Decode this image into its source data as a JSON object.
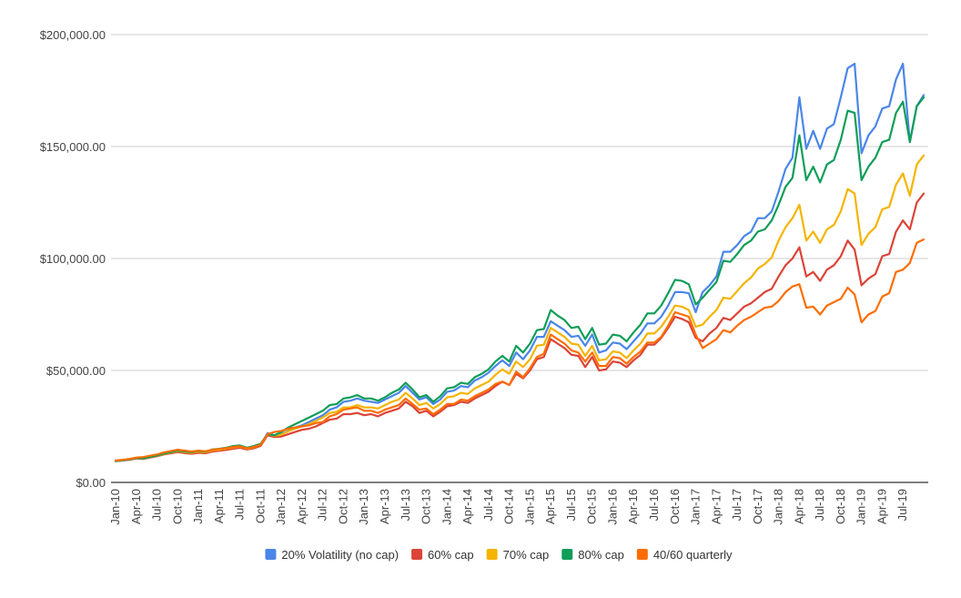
{
  "chart_data": {
    "type": "line",
    "title": "",
    "xlabel": "",
    "ylabel": "",
    "ylim": [
      0,
      200000
    ],
    "grid": true,
    "legend_position": "bottom",
    "y_ticks": [
      {
        "value": 0,
        "label": "$0.00"
      },
      {
        "value": 50000,
        "label": "$50,000.00"
      },
      {
        "value": 100000,
        "label": "$100,000.00"
      },
      {
        "value": 150000,
        "label": "$150,000.00"
      },
      {
        "value": 200000,
        "label": "$200,000.00"
      }
    ],
    "x_tick_labels": [
      "Jan-10",
      "Apr-10",
      "Jul-10",
      "Oct-10",
      "Jan-11",
      "Apr-11",
      "Jul-11",
      "Oct-11",
      "Jan-12",
      "Apr-12",
      "Jul-12",
      "Oct-12",
      "Jan-13",
      "Apr-13",
      "Jul-13",
      "Oct-13",
      "Jan-14",
      "Apr-14",
      "Jul-14",
      "Oct-14",
      "Jan-15",
      "Apr-15",
      "Jul-15",
      "Oct-15",
      "Jan-16",
      "Apr-16",
      "Jul-16",
      "Oct-16",
      "Jan-17",
      "Apr-17",
      "Jul-17",
      "Oct-17",
      "Jan-18",
      "Apr-18",
      "Jul-18",
      "Oct-18",
      "Jan-19",
      "Apr-19",
      "Jul-19"
    ],
    "x_start": "Jan-10",
    "series": [
      {
        "name": "20% Volatility (no cap)",
        "color": "#4a86e8",
        "values": [
          9500,
          9800,
          10200,
          10800,
          10600,
          11200,
          11800,
          12600,
          13200,
          13800,
          13400,
          13100,
          13600,
          13300,
          14200,
          14500,
          15000,
          15500,
          15900,
          15000,
          15600,
          16800,
          22000,
          21000,
          21500,
          23000,
          24500,
          25500,
          27000,
          28500,
          30000,
          32500,
          33500,
          36000,
          36500,
          37500,
          36500,
          36000,
          35500,
          37000,
          38500,
          40000,
          43000,
          40000,
          37000,
          38000,
          35000,
          37000,
          40500,
          41000,
          43000,
          42500,
          45500,
          47000,
          49000,
          52000,
          54500,
          52000,
          58000,
          55000,
          59000,
          65000,
          65000,
          72000,
          70000,
          68000,
          65000,
          65500,
          61000,
          66000,
          58000,
          59000,
          62500,
          62000,
          59500,
          63000,
          66500,
          71000,
          71000,
          74000,
          79000,
          85000,
          85000,
          84500,
          76000,
          85000,
          88000,
          92000,
          103000,
          103000,
          106000,
          110000,
          112000,
          118000,
          118000,
          121000,
          130000,
          140000,
          145000,
          172000,
          149000,
          157000,
          149000,
          158000,
          160000,
          172000,
          185000,
          187000,
          147000,
          155000,
          159000,
          167000,
          168000,
          180000,
          187000,
          152000,
          168000,
          173000
        ]
      },
      {
        "name": "60% cap",
        "color": "#db4437",
        "values": [
          9500,
          9800,
          10100,
          10700,
          10500,
          11100,
          11700,
          12500,
          13000,
          13500,
          13100,
          12800,
          13200,
          13000,
          13800,
          14100,
          14500,
          15000,
          15500,
          14700,
          15200,
          16300,
          21000,
          20300,
          20500,
          21500,
          22500,
          23500,
          24000,
          25000,
          26500,
          28000,
          28500,
          30500,
          30500,
          31000,
          30000,
          30500,
          29500,
          31000,
          32000,
          33000,
          36000,
          34000,
          31000,
          32000,
          29500,
          31500,
          34000,
          34500,
          36000,
          35500,
          37500,
          39000,
          40500,
          43000,
          45000,
          43500,
          48500,
          46500,
          50000,
          55000,
          56000,
          64000,
          62000,
          60000,
          57000,
          56500,
          51500,
          56000,
          50000,
          50500,
          54000,
          53500,
          51500,
          54500,
          57000,
          61500,
          61500,
          64500,
          69000,
          74000,
          73000,
          71500,
          64500,
          63000,
          66500,
          69000,
          73500,
          72500,
          75500,
          78500,
          80000,
          82500,
          85000,
          86500,
          92000,
          97000,
          100000,
          105000,
          92000,
          94000,
          90000,
          95000,
          97000,
          101000,
          108000,
          104000,
          88000,
          91000,
          93000,
          101000,
          102000,
          112000,
          117000,
          113000,
          125000,
          129000
        ]
      },
      {
        "name": "70% cap",
        "color": "#f4b400",
        "values": [
          9600,
          9900,
          10300,
          10900,
          10700,
          11300,
          11900,
          12700,
          13300,
          13900,
          13500,
          13200,
          13700,
          13400,
          14300,
          14600,
          15100,
          15600,
          16000,
          15100,
          15700,
          16800,
          21500,
          20800,
          21300,
          22800,
          24000,
          25000,
          26000,
          27500,
          29000,
          31000,
          31500,
          33500,
          33500,
          34500,
          33500,
          33500,
          33000,
          34500,
          36000,
          37000,
          40000,
          37500,
          34500,
          35500,
          33000,
          35000,
          38000,
          38500,
          40000,
          39500,
          42000,
          43500,
          45000,
          48000,
          50500,
          48500,
          54000,
          51500,
          55000,
          61000,
          61500,
          69000,
          67000,
          65000,
          62000,
          61500,
          56500,
          61000,
          54500,
          55000,
          58500,
          58000,
          55500,
          59000,
          62000,
          66500,
          66500,
          69500,
          74000,
          79000,
          78500,
          77000,
          69500,
          70500,
          74000,
          77000,
          82500,
          82000,
          85500,
          89000,
          91500,
          95500,
          97500,
          100500,
          108000,
          114000,
          118000,
          124000,
          108000,
          112000,
          107000,
          113000,
          115000,
          121000,
          131000,
          129000,
          106000,
          111000,
          114000,
          122000,
          123000,
          133000,
          138000,
          128000,
          142000,
          146000
        ]
      },
      {
        "name": "80% cap",
        "color": "#0f9d58",
        "values": [
          9600,
          9900,
          10300,
          10900,
          10700,
          11400,
          12000,
          12900,
          13500,
          14200,
          13800,
          13500,
          14000,
          13700,
          14700,
          15000,
          15500,
          16200,
          16500,
          15500,
          16200,
          17200,
          21500,
          21000,
          22500,
          24500,
          26000,
          27500,
          29000,
          30500,
          32000,
          34500,
          35000,
          37500,
          38000,
          39000,
          37500,
          37500,
          36500,
          38000,
          40000,
          41500,
          44500,
          41500,
          38000,
          39000,
          36000,
          38500,
          42000,
          42500,
          44500,
          44000,
          47000,
          48500,
          50500,
          54000,
          56500,
          54000,
          61000,
          58000,
          62000,
          68000,
          68500,
          77000,
          74500,
          72500,
          69000,
          69500,
          64000,
          69000,
          61500,
          62000,
          66000,
          65500,
          63000,
          67000,
          70500,
          75500,
          75500,
          79000,
          84500,
          90500,
          90000,
          88500,
          79500,
          82500,
          86000,
          89500,
          99000,
          98500,
          102000,
          106000,
          108000,
          112000,
          113000,
          117000,
          124000,
          132000,
          136000,
          155000,
          135000,
          141000,
          134000,
          142000,
          144000,
          153000,
          166000,
          165000,
          135000,
          141000,
          145000,
          152000,
          153000,
          165000,
          170000,
          152000,
          168000,
          172000
        ]
      },
      {
        "name": "40/60 quarterly",
        "color": "#ff6d00",
        "values": [
          9800,
          10100,
          10500,
          11100,
          11300,
          11900,
          12500,
          13400,
          14000,
          14600,
          14200,
          13800,
          14200,
          13900,
          14600,
          14900,
          15300,
          15800,
          16100,
          15200,
          15800,
          16800,
          21500,
          22500,
          23000,
          24000,
          24500,
          25000,
          25500,
          26500,
          27000,
          29500,
          30500,
          32500,
          33000,
          33500,
          32000,
          32000,
          31000,
          32500,
          33500,
          34500,
          37500,
          35000,
          32500,
          33000,
          30500,
          32500,
          35000,
          35000,
          37000,
          36500,
          38500,
          40000,
          41500,
          44000,
          45000,
          43500,
          49500,
          47000,
          51000,
          56000,
          57500,
          66000,
          64000,
          62000,
          59000,
          58000,
          54000,
          58000,
          52000,
          52000,
          56000,
          55500,
          53000,
          56000,
          58500,
          62500,
          62500,
          65000,
          70000,
          76000,
          75000,
          74000,
          66000,
          60000,
          62000,
          64000,
          68000,
          67000,
          70000,
          72500,
          74000,
          76000,
          78000,
          78500,
          81000,
          85000,
          87500,
          88500,
          78000,
          78500,
          75000,
          79000,
          80500,
          82000,
          87000,
          84000,
          71500,
          75000,
          76500,
          83000,
          84500,
          94000,
          95000,
          98000,
          107000,
          108500
        ]
      }
    ]
  }
}
